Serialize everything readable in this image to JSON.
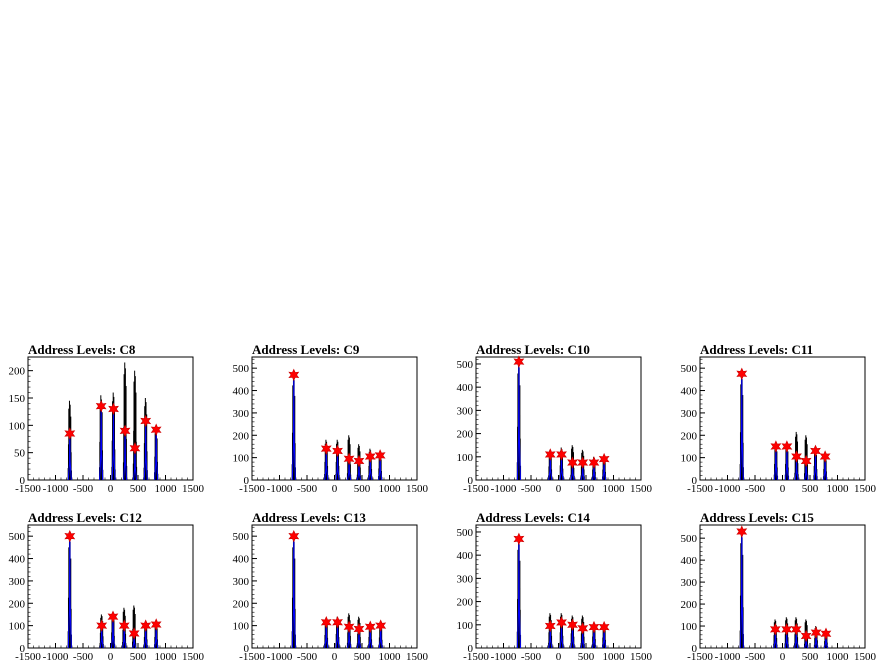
{
  "colors": {
    "hist": "#000000",
    "fit": "#0000ff",
    "marker": "#ff0000",
    "frame": "#000000"
  },
  "chart_data": [
    {
      "type": "histogram",
      "title": "Address Levels: C8",
      "xlim": [
        -1500,
        1500
      ],
      "ylim": [
        0,
        225
      ],
      "x_ticks": [
        "-1500",
        "-1000",
        "-500",
        "0",
        "500",
        "1000",
        "1500"
      ],
      "y_ticks": [
        0,
        50,
        100,
        150,
        200
      ],
      "peaks": [
        {
          "x": -740,
          "black": 145,
          "blue": 85
        },
        {
          "x": -170,
          "black": 155,
          "blue": 135
        },
        {
          "x": 55,
          "black": 160,
          "blue": 130
        },
        {
          "x": 265,
          "black": 215,
          "blue": 90
        },
        {
          "x": 445,
          "black": 200,
          "blue": 58
        },
        {
          "x": 640,
          "black": 150,
          "blue": 108
        },
        {
          "x": 830,
          "black": 95,
          "blue": 92
        }
      ],
      "markers": [
        {
          "x": -740,
          "y": 85
        },
        {
          "x": -170,
          "y": 135
        },
        {
          "x": 55,
          "y": 130
        },
        {
          "x": 265,
          "y": 90
        },
        {
          "x": 445,
          "y": 58
        },
        {
          "x": 640,
          "y": 108
        },
        {
          "x": 830,
          "y": 92
        }
      ]
    },
    {
      "type": "histogram",
      "title": "Address Levels: C9",
      "xlim": [
        -1500,
        1500
      ],
      "ylim": [
        0,
        550
      ],
      "x_ticks": [
        "-1500",
        "-1000",
        "-500",
        "0",
        "500",
        "1000",
        "1500"
      ],
      "y_ticks": [
        0,
        100,
        200,
        300,
        400,
        500
      ],
      "peaks": [
        {
          "x": -740,
          "black": 470,
          "blue": 470
        },
        {
          "x": -150,
          "black": 180,
          "blue": 140
        },
        {
          "x": 55,
          "black": 180,
          "blue": 130
        },
        {
          "x": 265,
          "black": 200,
          "blue": 95
        },
        {
          "x": 445,
          "black": 160,
          "blue": 85
        },
        {
          "x": 650,
          "black": 140,
          "blue": 105
        },
        {
          "x": 830,
          "black": 115,
          "blue": 110
        }
      ],
      "markers": [
        {
          "x": -740,
          "y": 470
        },
        {
          "x": -150,
          "y": 140
        },
        {
          "x": 55,
          "y": 130
        },
        {
          "x": 265,
          "y": 95
        },
        {
          "x": 445,
          "y": 85
        },
        {
          "x": 650,
          "y": 105
        },
        {
          "x": 830,
          "y": 110
        }
      ]
    },
    {
      "type": "histogram",
      "title": "Address Levels: C10",
      "xlim": [
        -1500,
        1500
      ],
      "ylim": [
        0,
        530
      ],
      "x_ticks": [
        "-1500",
        "-1000",
        "-500",
        "0",
        "500",
        "1000",
        "1500"
      ],
      "y_ticks": [
        0,
        100,
        200,
        300,
        400,
        500
      ],
      "peaks": [
        {
          "x": -720,
          "black": 510,
          "blue": 510
        },
        {
          "x": -150,
          "black": 130,
          "blue": 110
        },
        {
          "x": 55,
          "black": 140,
          "blue": 110
        },
        {
          "x": 255,
          "black": 150,
          "blue": 75
        },
        {
          "x": 440,
          "black": 130,
          "blue": 75
        },
        {
          "x": 645,
          "black": 100,
          "blue": 75
        },
        {
          "x": 830,
          "black": 100,
          "blue": 90
        }
      ],
      "markers": [
        {
          "x": -720,
          "y": 510
        },
        {
          "x": -150,
          "y": 110
        },
        {
          "x": 55,
          "y": 110
        },
        {
          "x": 255,
          "y": 75
        },
        {
          "x": 440,
          "y": 75
        },
        {
          "x": 645,
          "y": 75
        },
        {
          "x": 830,
          "y": 90
        }
      ]
    },
    {
      "type": "histogram",
      "title": "Address Levels: C11",
      "xlim": [
        -1500,
        1500
      ],
      "ylim": [
        0,
        550
      ],
      "x_ticks": [
        "-1500",
        "-1000",
        "-500",
        "0",
        "500",
        "1000",
        "1500"
      ],
      "y_ticks": [
        0,
        100,
        200,
        300,
        400,
        500
      ],
      "peaks": [
        {
          "x": -740,
          "black": 475,
          "blue": 475
        },
        {
          "x": -120,
          "black": 160,
          "blue": 150
        },
        {
          "x": 80,
          "black": 160,
          "blue": 150
        },
        {
          "x": 255,
          "black": 215,
          "blue": 105
        },
        {
          "x": 430,
          "black": 200,
          "blue": 85
        },
        {
          "x": 600,
          "black": 140,
          "blue": 130
        },
        {
          "x": 775,
          "black": 110,
          "blue": 105
        }
      ],
      "markers": [
        {
          "x": -740,
          "y": 475
        },
        {
          "x": -120,
          "y": 150
        },
        {
          "x": 80,
          "y": 150
        },
        {
          "x": 255,
          "y": 105
        },
        {
          "x": 430,
          "y": 85
        },
        {
          "x": 600,
          "y": 130
        },
        {
          "x": 775,
          "y": 105
        }
      ]
    },
    {
      "type": "histogram",
      "title": "Address Levels: C12",
      "xlim": [
        -1500,
        1500
      ],
      "ylim": [
        0,
        550
      ],
      "x_ticks": [
        "-1500",
        "-1000",
        "-500",
        "0",
        "500",
        "1000",
        "1500"
      ],
      "y_ticks": [
        0,
        100,
        200,
        300,
        400,
        500
      ],
      "peaks": [
        {
          "x": -740,
          "black": 500,
          "blue": 500
        },
        {
          "x": -160,
          "black": 150,
          "blue": 100
        },
        {
          "x": 45,
          "black": 155,
          "blue": 140
        },
        {
          "x": 250,
          "black": 180,
          "blue": 100
        },
        {
          "x": 430,
          "black": 190,
          "blue": 65
        },
        {
          "x": 640,
          "black": 110,
          "blue": 100
        },
        {
          "x": 830,
          "black": 110,
          "blue": 105
        }
      ],
      "markers": [
        {
          "x": -740,
          "y": 500
        },
        {
          "x": -160,
          "y": 100
        },
        {
          "x": 45,
          "y": 140
        },
        {
          "x": 250,
          "y": 100
        },
        {
          "x": 430,
          "y": 65
        },
        {
          "x": 640,
          "y": 100
        },
        {
          "x": 830,
          "y": 105
        }
      ]
    },
    {
      "type": "histogram",
      "title": "Address Levels: C13",
      "xlim": [
        -1500,
        1500
      ],
      "ylim": [
        0,
        550
      ],
      "x_ticks": [
        "-1500",
        "-1000",
        "-500",
        "0",
        "500",
        "1000",
        "1500"
      ],
      "y_ticks": [
        0,
        100,
        200,
        300,
        400,
        500
      ],
      "peaks": [
        {
          "x": -740,
          "black": 500,
          "blue": 500
        },
        {
          "x": -150,
          "black": 130,
          "blue": 115
        },
        {
          "x": 55,
          "black": 140,
          "blue": 115
        },
        {
          "x": 265,
          "black": 155,
          "blue": 95
        },
        {
          "x": 445,
          "black": 140,
          "blue": 85
        },
        {
          "x": 650,
          "black": 110,
          "blue": 95
        },
        {
          "x": 840,
          "black": 105,
          "blue": 100
        }
      ],
      "markers": [
        {
          "x": -740,
          "y": 500
        },
        {
          "x": -150,
          "y": 115
        },
        {
          "x": 55,
          "y": 115
        },
        {
          "x": 265,
          "y": 95
        },
        {
          "x": 445,
          "y": 85
        },
        {
          "x": 650,
          "y": 95
        },
        {
          "x": 840,
          "y": 100
        }
      ]
    },
    {
      "type": "histogram",
      "title": "Address Levels: C14",
      "xlim": [
        -1500,
        1500
      ],
      "ylim": [
        0,
        530
      ],
      "x_ticks": [
        "-1500",
        "-1000",
        "-500",
        "0",
        "500",
        "1000",
        "1500"
      ],
      "y_ticks": [
        0,
        100,
        200,
        300,
        400,
        500
      ],
      "peaks": [
        {
          "x": -720,
          "black": 470,
          "blue": 470
        },
        {
          "x": -150,
          "black": 150,
          "blue": 95
        },
        {
          "x": 55,
          "black": 150,
          "blue": 110
        },
        {
          "x": 255,
          "black": 140,
          "blue": 100
        },
        {
          "x": 440,
          "black": 140,
          "blue": 85
        },
        {
          "x": 645,
          "black": 110,
          "blue": 90
        },
        {
          "x": 830,
          "black": 100,
          "blue": 90
        }
      ],
      "markers": [
        {
          "x": -720,
          "y": 470
        },
        {
          "x": -150,
          "y": 95
        },
        {
          "x": 55,
          "y": 110
        },
        {
          "x": 255,
          "y": 100
        },
        {
          "x": 440,
          "y": 85
        },
        {
          "x": 645,
          "y": 90
        },
        {
          "x": 830,
          "y": 90
        }
      ]
    },
    {
      "type": "histogram",
      "title": "Address Levels: C15",
      "xlim": [
        -1500,
        1500
      ],
      "ylim": [
        0,
        560
      ],
      "x_ticks": [
        "-1500",
        "-1000",
        "-500",
        "0",
        "500",
        "1000",
        "1500"
      ],
      "y_ticks": [
        0,
        100,
        200,
        300,
        400,
        500
      ],
      "peaks": [
        {
          "x": -740,
          "black": 530,
          "blue": 530
        },
        {
          "x": -130,
          "black": 130,
          "blue": 85
        },
        {
          "x": 75,
          "black": 140,
          "blue": 85
        },
        {
          "x": 250,
          "black": 140,
          "blue": 85
        },
        {
          "x": 430,
          "black": 130,
          "blue": 55
        },
        {
          "x": 610,
          "black": 100,
          "blue": 70
        },
        {
          "x": 790,
          "black": 70,
          "blue": 65
        }
      ],
      "markers": [
        {
          "x": -740,
          "y": 530
        },
        {
          "x": -130,
          "y": 85
        },
        {
          "x": 75,
          "y": 85
        },
        {
          "x": 250,
          "y": 85
        },
        {
          "x": 430,
          "y": 55
        },
        {
          "x": 610,
          "y": 70
        },
        {
          "x": 790,
          "y": 65
        }
      ]
    }
  ]
}
